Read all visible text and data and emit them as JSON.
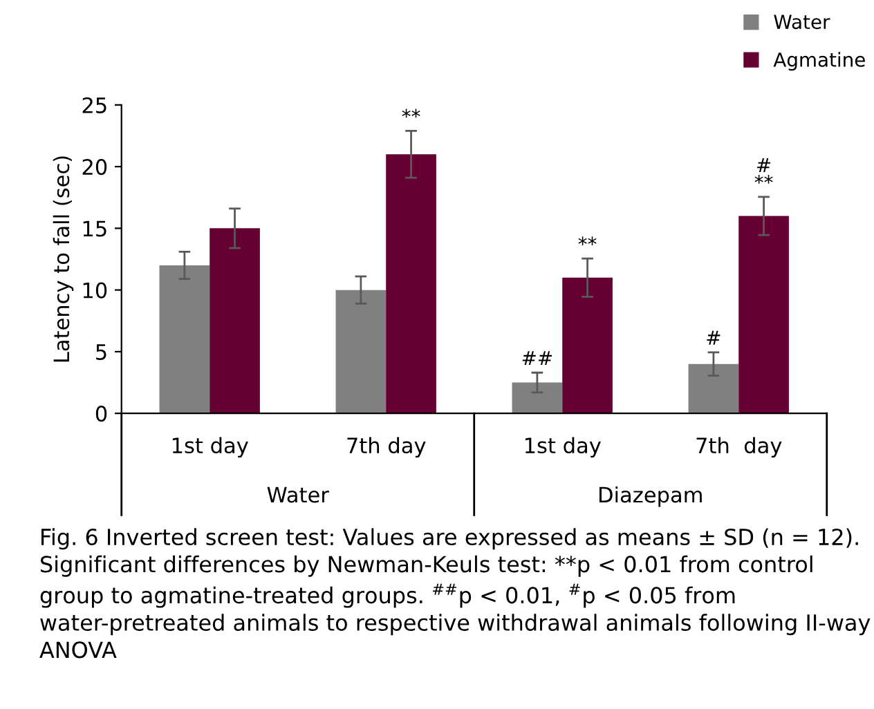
{
  "chart_data": {
    "type": "bar",
    "ylabel": "Latency to fall (sec)",
    "categories": [
      "1st day",
      "7th day",
      "1st day",
      "7th  day"
    ],
    "series": [
      {
        "name": "Water",
        "color": "#808080",
        "values": [
          12,
          10,
          2.5,
          4
        ],
        "errors": [
          1.1,
          1.1,
          0.8,
          0.95
        ],
        "value_labels": [
          null,
          null,
          "##",
          "#"
        ]
      },
      {
        "name": "Agmatine",
        "color": "#660033",
        "values": [
          15,
          21,
          11,
          16
        ],
        "errors": [
          1.6,
          1.9,
          1.55,
          1.55
        ],
        "value_labels": [
          null,
          "**",
          "**",
          "#\n**"
        ]
      }
    ],
    "ylim": [
      0,
      25
    ],
    "yticks": [
      0,
      5,
      10,
      15,
      20,
      25
    ],
    "grid": false,
    "legend": "top right",
    "annotations": [
      "Water",
      "Diazepam",
      "Fig. 6 Inverted screen test: Values are expressed as means ± SD (n = 12). Significant differences by Newman-Keuls test: **p < 0.01 from control group to agmatine-treated groups. $^{##}$p < 0.01, $^{#}$p < 0.05 from water-pretreated animals to respective withdrawal animals following II-way ANOVA"
    ]
  }
}
